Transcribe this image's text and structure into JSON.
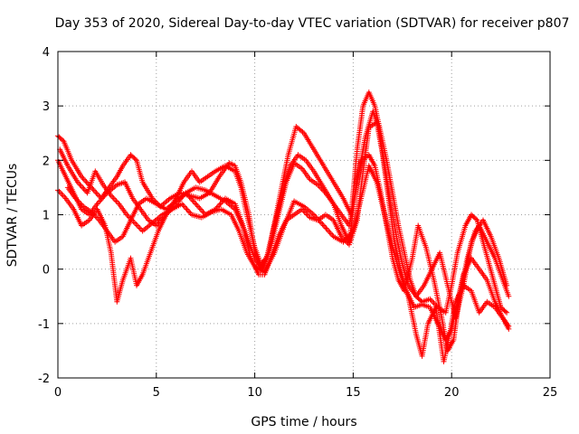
{
  "chart_data": {
    "type": "scatter",
    "title": "Day 353 of 2020, Sidereal Day-to-day VTEC variation (SDTVAR) for receiver p807",
    "xlabel": "GPS time / hours",
    "ylabel": "SDTVAR / TECUs",
    "xlim": [
      0,
      25
    ],
    "ylim": [
      -2,
      4
    ],
    "xticks": [
      0,
      5,
      10,
      15,
      20,
      25
    ],
    "yticks": [
      -2,
      -1,
      0,
      1,
      2,
      3,
      4
    ],
    "grid": true,
    "marker": "+",
    "color": "#ff0000",
    "series": [
      {
        "name": "trace-1",
        "points": [
          [
            0,
            2.45
          ],
          [
            0.3,
            2.35
          ],
          [
            0.7,
            2.0
          ],
          [
            1.2,
            1.7
          ],
          [
            1.7,
            1.5
          ],
          [
            2.2,
            1.3
          ],
          [
            2.6,
            1.5
          ],
          [
            3.0,
            1.7
          ],
          [
            3.3,
            1.9
          ],
          [
            3.7,
            2.1
          ],
          [
            4.0,
            2.0
          ],
          [
            4.3,
            1.6
          ],
          [
            4.8,
            1.3
          ],
          [
            5.2,
            1.15
          ],
          [
            5.7,
            1.3
          ],
          [
            6.2,
            1.4
          ],
          [
            6.7,
            1.35
          ],
          [
            7.2,
            1.3
          ],
          [
            7.7,
            1.4
          ],
          [
            8.2,
            1.7
          ],
          [
            8.7,
            1.95
          ],
          [
            9.0,
            1.9
          ],
          [
            9.3,
            1.6
          ],
          [
            9.7,
            1.0
          ],
          [
            10.0,
            0.3
          ],
          [
            10.3,
            0.0
          ],
          [
            10.7,
            0.3
          ],
          [
            11.2,
            1.2
          ],
          [
            11.7,
            2.1
          ],
          [
            12.1,
            2.62
          ],
          [
            12.5,
            2.5
          ],
          [
            13.0,
            2.2
          ],
          [
            13.5,
            1.9
          ],
          [
            14.0,
            1.6
          ],
          [
            14.5,
            1.3
          ],
          [
            14.9,
            1.0
          ],
          [
            15.2,
            2.2
          ],
          [
            15.5,
            3.0
          ],
          [
            15.8,
            3.25
          ],
          [
            16.1,
            3.0
          ],
          [
            16.4,
            2.5
          ],
          [
            16.7,
            2.0
          ],
          [
            17.0,
            1.4
          ],
          [
            17.3,
            0.8
          ],
          [
            17.6,
            0.3
          ],
          [
            17.9,
            -0.2
          ],
          [
            18.2,
            -0.5
          ],
          [
            18.5,
            -0.6
          ],
          [
            18.9,
            -0.55
          ],
          [
            19.3,
            -0.7
          ],
          [
            19.7,
            -0.8
          ],
          [
            20.0,
            -0.3
          ],
          [
            20.3,
            0.3
          ],
          [
            20.7,
            0.8
          ],
          [
            21.0,
            1.0
          ],
          [
            21.3,
            0.9
          ],
          [
            21.6,
            0.5
          ],
          [
            21.9,
            0.1
          ],
          [
            22.2,
            -0.3
          ],
          [
            22.5,
            -0.7
          ],
          [
            22.8,
            -0.8
          ]
        ]
      },
      {
        "name": "trace-2",
        "points": [
          [
            0,
            2.0
          ],
          [
            0.4,
            1.7
          ],
          [
            0.8,
            1.4
          ],
          [
            1.2,
            1.1
          ],
          [
            1.6,
            1.0
          ],
          [
            2.0,
            1.2
          ],
          [
            2.5,
            1.4
          ],
          [
            3.0,
            1.55
          ],
          [
            3.4,
            1.6
          ],
          [
            3.8,
            1.3
          ],
          [
            4.2,
            1.1
          ],
          [
            4.6,
            0.9
          ],
          [
            5.0,
            0.8
          ],
          [
            5.5,
            1.0
          ],
          [
            6.0,
            1.3
          ],
          [
            6.4,
            1.6
          ],
          [
            6.8,
            1.8
          ],
          [
            7.2,
            1.6
          ],
          [
            7.6,
            1.7
          ],
          [
            8.0,
            1.8
          ],
          [
            8.5,
            1.9
          ],
          [
            9.0,
            1.8
          ],
          [
            9.3,
            1.5
          ],
          [
            9.6,
            1.0
          ],
          [
            10.0,
            0.4
          ],
          [
            10.3,
            0.1
          ],
          [
            10.6,
            0.2
          ],
          [
            11.0,
            0.8
          ],
          [
            11.4,
            1.4
          ],
          [
            11.8,
            1.9
          ],
          [
            12.2,
            2.1
          ],
          [
            12.6,
            2.0
          ],
          [
            13.0,
            1.8
          ],
          [
            13.5,
            1.5
          ],
          [
            14.0,
            1.2
          ],
          [
            14.4,
            0.8
          ],
          [
            14.8,
            0.5
          ],
          [
            15.1,
            1.4
          ],
          [
            15.4,
            2.0
          ],
          [
            15.8,
            2.1
          ],
          [
            16.1,
            1.9
          ],
          [
            16.4,
            1.4
          ],
          [
            16.7,
            0.8
          ],
          [
            17.0,
            0.2
          ],
          [
            17.3,
            -0.2
          ],
          [
            17.6,
            -0.4
          ],
          [
            18.0,
            0.2
          ],
          [
            18.3,
            0.8
          ],
          [
            18.7,
            0.4
          ],
          [
            19.1,
            -0.2
          ],
          [
            19.5,
            -0.9
          ],
          [
            19.8,
            -1.5
          ],
          [
            20.1,
            -1.3
          ],
          [
            20.4,
            -0.5
          ],
          [
            20.8,
            0.2
          ],
          [
            21.2,
            0.7
          ],
          [
            21.6,
            0.9
          ],
          [
            22.0,
            0.6
          ],
          [
            22.4,
            0.2
          ],
          [
            22.8,
            -0.3
          ]
        ]
      },
      {
        "name": "trace-3",
        "points": [
          [
            0,
            1.45
          ],
          [
            0.4,
            1.3
          ],
          [
            0.8,
            1.1
          ],
          [
            1.2,
            0.8
          ],
          [
            1.6,
            0.9
          ],
          [
            2.0,
            1.1
          ],
          [
            2.4,
            0.8
          ],
          [
            2.7,
            0.3
          ],
          [
            3.0,
            -0.6
          ],
          [
            3.3,
            -0.2
          ],
          [
            3.7,
            0.2
          ],
          [
            4.0,
            -0.3
          ],
          [
            4.3,
            -0.1
          ],
          [
            4.7,
            0.3
          ],
          [
            5.1,
            0.7
          ],
          [
            5.5,
            1.0
          ],
          [
            6.0,
            1.2
          ],
          [
            6.5,
            1.4
          ],
          [
            7.0,
            1.2
          ],
          [
            7.5,
            1.0
          ],
          [
            8.0,
            1.1
          ],
          [
            8.5,
            1.3
          ],
          [
            9.0,
            1.2
          ],
          [
            9.4,
            0.8
          ],
          [
            9.8,
            0.2
          ],
          [
            10.2,
            -0.1
          ],
          [
            10.5,
            -0.1
          ],
          [
            10.8,
            0.2
          ],
          [
            11.2,
            0.6
          ],
          [
            11.6,
            0.9
          ],
          [
            12.0,
            1.0
          ],
          [
            12.4,
            1.1
          ],
          [
            12.8,
            0.95
          ],
          [
            13.2,
            0.9
          ],
          [
            13.6,
            1.0
          ],
          [
            14.0,
            0.9
          ],
          [
            14.4,
            0.6
          ],
          [
            14.8,
            0.45
          ],
          [
            15.2,
            0.9
          ],
          [
            15.5,
            1.8
          ],
          [
            15.8,
            2.6
          ],
          [
            16.2,
            2.7
          ],
          [
            16.5,
            2.1
          ],
          [
            16.8,
            1.3
          ],
          [
            17.1,
            0.5
          ],
          [
            17.4,
            0.0
          ],
          [
            17.7,
            -0.4
          ],
          [
            18.1,
            -0.7
          ],
          [
            18.5,
            -0.65
          ],
          [
            18.9,
            -0.7
          ],
          [
            19.3,
            -1.0
          ],
          [
            19.7,
            -1.3
          ],
          [
            20.0,
            -1.1
          ],
          [
            20.3,
            -0.6
          ],
          [
            20.6,
            -0.1
          ],
          [
            21.0,
            0.2
          ],
          [
            21.4,
            0.0
          ],
          [
            21.8,
            -0.2
          ],
          [
            22.2,
            -0.6
          ],
          [
            22.6,
            -0.9
          ],
          [
            22.9,
            -1.1
          ]
        ]
      },
      {
        "name": "trace-4",
        "points": [
          [
            0.5,
            1.5
          ],
          [
            0.9,
            1.3
          ],
          [
            1.3,
            1.15
          ],
          [
            1.7,
            1.05
          ],
          [
            2.1,
            0.9
          ],
          [
            2.5,
            0.7
          ],
          [
            2.9,
            0.5
          ],
          [
            3.3,
            0.6
          ],
          [
            3.7,
            0.9
          ],
          [
            4.1,
            1.2
          ],
          [
            4.5,
            1.3
          ],
          [
            5.0,
            1.2
          ],
          [
            5.5,
            1.1
          ],
          [
            6.0,
            1.25
          ],
          [
            6.5,
            1.4
          ],
          [
            7.0,
            1.5
          ],
          [
            7.5,
            1.45
          ],
          [
            8.0,
            1.35
          ],
          [
            8.5,
            1.25
          ],
          [
            9.0,
            1.1
          ],
          [
            9.5,
            0.7
          ],
          [
            10.0,
            0.2
          ],
          [
            10.4,
            0.0
          ],
          [
            10.8,
            0.4
          ],
          [
            11.2,
            1.0
          ],
          [
            11.6,
            1.6
          ],
          [
            12.0,
            1.95
          ],
          [
            12.4,
            1.85
          ],
          [
            12.8,
            1.65
          ],
          [
            13.2,
            1.55
          ],
          [
            13.6,
            1.4
          ],
          [
            14.0,
            1.2
          ],
          [
            14.4,
            1.0
          ],
          [
            14.8,
            0.8
          ],
          [
            15.2,
            1.6
          ],
          [
            15.6,
            2.4
          ],
          [
            16.0,
            2.9
          ],
          [
            16.3,
            2.6
          ],
          [
            16.6,
            1.9
          ],
          [
            16.9,
            1.2
          ],
          [
            17.2,
            0.6
          ],
          [
            17.5,
            0.1
          ],
          [
            17.8,
            -0.3
          ],
          [
            18.2,
            -0.5
          ],
          [
            18.6,
            -0.3
          ],
          [
            19.0,
            0.0
          ],
          [
            19.4,
            0.3
          ],
          [
            19.8,
            -0.3
          ],
          [
            20.2,
            -0.9
          ],
          [
            20.6,
            -0.3
          ],
          [
            21.0,
            0.5
          ],
          [
            21.4,
            0.8
          ],
          [
            21.8,
            0.5
          ],
          [
            22.2,
            0.2
          ],
          [
            22.6,
            -0.2
          ],
          [
            22.9,
            -0.5
          ]
        ]
      },
      {
        "name": "trace-5",
        "points": [
          [
            0.1,
            2.2
          ],
          [
            0.5,
            1.9
          ],
          [
            1.0,
            1.6
          ],
          [
            1.5,
            1.4
          ],
          [
            1.9,
            1.8
          ],
          [
            2.3,
            1.55
          ],
          [
            2.7,
            1.35
          ],
          [
            3.1,
            1.2
          ],
          [
            3.5,
            1.0
          ],
          [
            3.9,
            0.85
          ],
          [
            4.3,
            0.7
          ],
          [
            4.8,
            0.85
          ],
          [
            5.3,
            1.0
          ],
          [
            5.8,
            1.1
          ],
          [
            6.3,
            1.2
          ],
          [
            6.8,
            1.0
          ],
          [
            7.3,
            0.95
          ],
          [
            7.8,
            1.05
          ],
          [
            8.3,
            1.1
          ],
          [
            8.8,
            1.0
          ],
          [
            9.2,
            0.7
          ],
          [
            9.6,
            0.3
          ],
          [
            10.0,
            0.05
          ],
          [
            10.5,
            -0.05
          ],
          [
            11.0,
            0.3
          ],
          [
            11.5,
            0.8
          ],
          [
            12.0,
            1.25
          ],
          [
            12.5,
            1.15
          ],
          [
            13.0,
            1.0
          ],
          [
            13.5,
            0.8
          ],
          [
            14.0,
            0.6
          ],
          [
            14.5,
            0.5
          ],
          [
            15.0,
            0.7
          ],
          [
            15.4,
            1.3
          ],
          [
            15.8,
            1.9
          ],
          [
            16.2,
            1.6
          ],
          [
            16.6,
            1.0
          ],
          [
            17.0,
            0.4
          ],
          [
            17.4,
            -0.1
          ],
          [
            17.8,
            -0.5
          ],
          [
            18.2,
            -1.2
          ],
          [
            18.5,
            -1.6
          ],
          [
            18.8,
            -1.0
          ],
          [
            19.2,
            -0.7
          ],
          [
            19.6,
            -1.7
          ],
          [
            19.9,
            -1.2
          ],
          [
            20.2,
            -0.6
          ],
          [
            20.6,
            -0.3
          ],
          [
            21.0,
            -0.4
          ],
          [
            21.4,
            -0.8
          ],
          [
            21.8,
            -0.6
          ],
          [
            22.2,
            -0.7
          ],
          [
            22.6,
            -0.9
          ],
          [
            22.9,
            -1.05
          ]
        ]
      }
    ]
  }
}
